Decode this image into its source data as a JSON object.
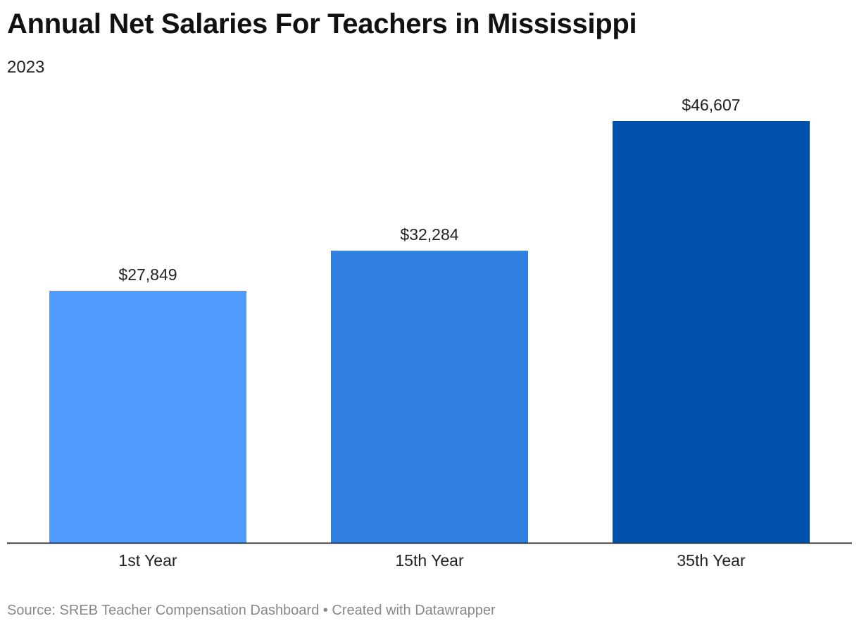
{
  "title": "Annual Net Salaries For Teachers in Mississippi",
  "subtitle": "2023",
  "footer": {
    "source": "Source: SREB Teacher Compensation Dashboard",
    "separator": "•",
    "credit": "Created with Datawrapper"
  },
  "chart_data": {
    "type": "bar",
    "categories": [
      "1st Year",
      "15th Year",
      "35th Year"
    ],
    "values": [
      27849,
      32284,
      46607
    ],
    "value_labels": [
      "$27,849",
      "$32,284",
      "$46,607"
    ],
    "colors": [
      "#519BFF",
      "#3080E2",
      "#0051AD"
    ],
    "ylim": [
      0,
      46607
    ],
    "grid": false,
    "legend": "none",
    "axis_line_color": "#333333"
  }
}
